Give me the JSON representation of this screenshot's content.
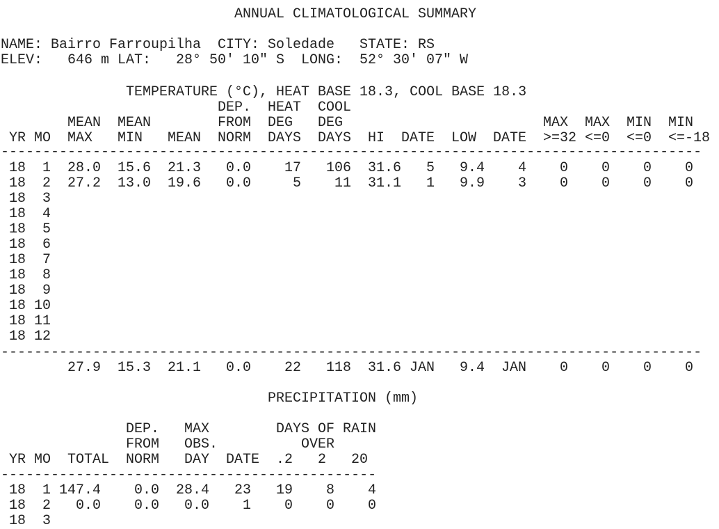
{
  "title": "ANNUAL CLIMATOLOGICAL SUMMARY",
  "station": {
    "name_label": "NAME:",
    "name": "Bairro Farroupilha",
    "city_label": "CITY:",
    "city": "Soledade",
    "state_label": "STATE:",
    "state": "RS",
    "elev_label": "ELEV:",
    "elev": "646 m",
    "lat_label": "LAT:",
    "lat": "28° 50' 10\" S",
    "long_label": "LONG:",
    "long": "52° 30' 07\" W"
  },
  "temperature": {
    "title": "TEMPERATURE (°C), HEAT BASE 18.3, COOL BASE 18.3",
    "header_rows": [
      [
        "DEP.",
        "HEAT",
        "COOL"
      ],
      [
        "MEAN",
        "MEAN",
        "FROM",
        "DEG",
        "DEG",
        "MAX",
        "MAX",
        "MIN",
        "MIN"
      ],
      [
        "YR",
        "MO",
        "MAX",
        "MIN",
        "MEAN",
        "NORM",
        "DAYS",
        "DAYS",
        "HI",
        "DATE",
        "LOW",
        "DATE",
        ">=32",
        "<=0",
        "<=0",
        "<=-18"
      ]
    ],
    "separator": "------------------------------------------------------------------------------------",
    "rows": [
      [
        "18",
        "1",
        "28.0",
        "15.6",
        "21.3",
        "0.0",
        "17",
        "106",
        "31.6",
        "5",
        "9.4",
        "4",
        "0",
        "0",
        "0",
        "0"
      ],
      [
        "18",
        "2",
        "27.2",
        "13.0",
        "19.6",
        "0.0",
        "5",
        "11",
        "31.1",
        "1",
        "9.9",
        "3",
        "0",
        "0",
        "0",
        "0"
      ],
      [
        "18",
        "3"
      ],
      [
        "18",
        "4"
      ],
      [
        "18",
        "5"
      ],
      [
        "18",
        "6"
      ],
      [
        "18",
        "7"
      ],
      [
        "18",
        "8"
      ],
      [
        "18",
        "9"
      ],
      [
        "18",
        "10"
      ],
      [
        "18",
        "11"
      ],
      [
        "18",
        "12"
      ]
    ],
    "totals": [
      "27.9",
      "15.3",
      "21.1",
      "0.0",
      "22",
      "118",
      "31.6",
      "JAN",
      "9.4",
      "JAN",
      "0",
      "0",
      "0",
      "0"
    ]
  },
  "precipitation": {
    "title": "PRECIPITATION (mm)",
    "header_rows": [
      [
        "DEP.",
        "MAX",
        "DAYS OF RAIN"
      ],
      [
        "FROM",
        "OBS.",
        "OVER"
      ],
      [
        "YR",
        "MO",
        "TOTAL",
        "NORM",
        "DAY",
        "DATE",
        ".2",
        "2",
        "20"
      ]
    ],
    "separator": "---------------------------------------------",
    "rows": [
      [
        "18",
        "1",
        "147.4",
        "0.0",
        "28.4",
        "23",
        "19",
        "8",
        "4"
      ],
      [
        "18",
        "2",
        "0.0",
        "0.0",
        "0.0",
        "1",
        "0",
        "0",
        "0"
      ],
      [
        "18",
        "3"
      ]
    ]
  }
}
